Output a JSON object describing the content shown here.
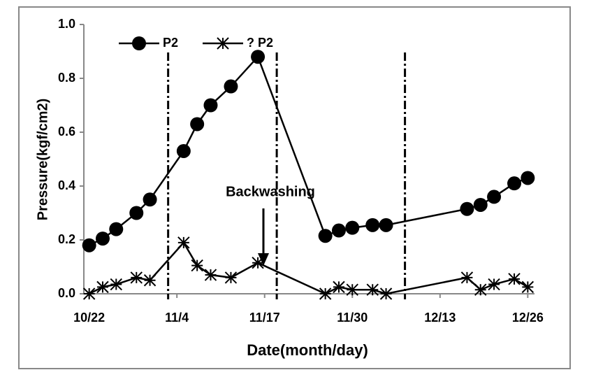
{
  "chart_data": {
    "type": "line",
    "y_label": "Pressure(kgf/cm2)",
    "x_label": "Date(month/day)",
    "annotation": "Backwashing",
    "x": [
      0,
      2,
      4,
      7,
      9,
      14,
      16,
      18,
      21,
      25,
      35,
      37,
      39,
      42,
      44,
      56,
      58,
      60,
      63,
      65
    ],
    "series": [
      {
        "name": "P2",
        "color": "#000000",
        "marker": "circle",
        "values": [
          0.18,
          0.205,
          0.24,
          0.3,
          0.35,
          0.53,
          0.63,
          0.7,
          0.77,
          0.88,
          0.215,
          0.235,
          0.245,
          0.255,
          0.255,
          0.315,
          0.33,
          0.36,
          0.41,
          0.43
        ]
      },
      {
        "name": "? P2",
        "color": "#000000",
        "marker": "star",
        "values": [
          0.0,
          0.025,
          0.035,
          0.06,
          0.05,
          0.19,
          0.105,
          0.07,
          0.06,
          0.115,
          0.0,
          0.025,
          0.015,
          0.015,
          0.0,
          0.06,
          0.015,
          0.035,
          0.055,
          0.025
        ]
      }
    ],
    "vlines": [
      11.7,
      27.8,
      46.8
    ],
    "xlim": [
      -1,
      66
    ],
    "xticks": [
      {
        "value": 0,
        "label": "10/22"
      },
      {
        "value": 13,
        "label": "11/4"
      },
      {
        "value": 26,
        "label": "11/17"
      },
      {
        "value": 39,
        "label": "11/30"
      },
      {
        "value": 52,
        "label": "12/13"
      },
      {
        "value": 65,
        "label": "12/26"
      }
    ],
    "ylim": [
      0,
      1
    ],
    "yticks": [
      {
        "value": 0,
        "label": "0.0"
      },
      {
        "value": 0.2,
        "label": "0.2"
      },
      {
        "value": 0.4,
        "label": "0.4"
      },
      {
        "value": 0.6,
        "label": "0.6"
      },
      {
        "value": 0.8,
        "label": "0.8"
      },
      {
        "value": 1,
        "label": "1.0"
      }
    ],
    "grid": false,
    "legend": "upper left"
  }
}
